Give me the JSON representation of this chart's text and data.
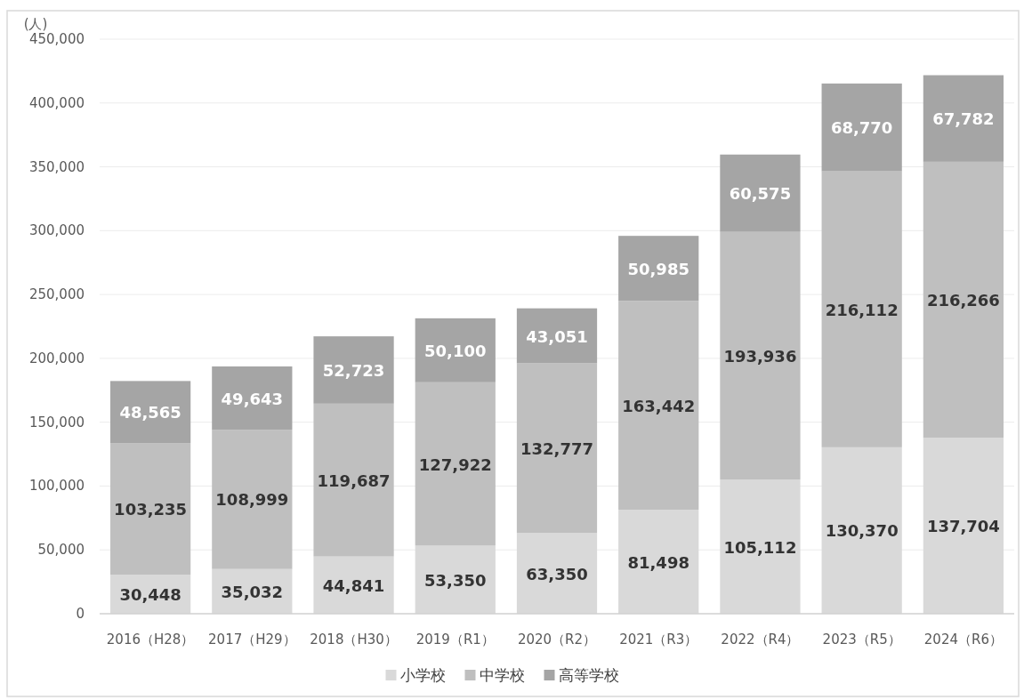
{
  "chart_data": {
    "type": "bar",
    "stacked": true,
    "ylabel": "(人)",
    "categories": [
      "2016（H28）",
      "2017（H29）",
      "2018（H30）",
      "2019（R1）",
      "2020（R2）",
      "2021（R3）",
      "2022（R4）",
      "2023（R5）",
      "2024（R6）"
    ],
    "series": [
      {
        "name": "小学校",
        "color": "#d9d9d9",
        "values": [
          30448,
          35032,
          44841,
          53350,
          63350,
          81498,
          105112,
          130370,
          137704
        ],
        "value_labels": [
          "30,448",
          "35,032",
          "44,841",
          "53,350",
          "63,350",
          "81,498",
          "105,112",
          "130,370",
          "137,704"
        ]
      },
      {
        "name": "中学校",
        "color": "#bfbfbf",
        "values": [
          103235,
          108999,
          119687,
          127922,
          132777,
          163442,
          193936,
          216112,
          216266
        ],
        "value_labels": [
          "103,235",
          "108,999",
          "119,687",
          "127,922",
          "132,777",
          "163,442",
          "193,936",
          "216,112",
          "216,266"
        ]
      },
      {
        "name": "高等学校",
        "color": "#a5a5a5",
        "values": [
          48565,
          49643,
          52723,
          50100,
          43051,
          50985,
          60575,
          68770,
          67782
        ],
        "value_labels": [
          "48,565",
          "49,643",
          "52,723",
          "50,100",
          "43,051",
          "50,985",
          "60,575",
          "68,770",
          "67,782"
        ]
      }
    ],
    "ylim": [
      0,
      450000
    ],
    "yticks": [
      {
        "value": 0,
        "label": "0"
      },
      {
        "value": 50000,
        "label": "50,000"
      },
      {
        "value": 100000,
        "label": "100,000"
      },
      {
        "value": 150000,
        "label": "150,000"
      },
      {
        "value": 200000,
        "label": "200,000"
      },
      {
        "value": 250000,
        "label": "250,000"
      },
      {
        "value": 300000,
        "label": "300,000"
      },
      {
        "value": 350000,
        "label": "350,000"
      },
      {
        "value": 400000,
        "label": "400,000"
      },
      {
        "value": 450000,
        "label": "450,000"
      }
    ],
    "grid": "y",
    "legend": "bottom"
  }
}
